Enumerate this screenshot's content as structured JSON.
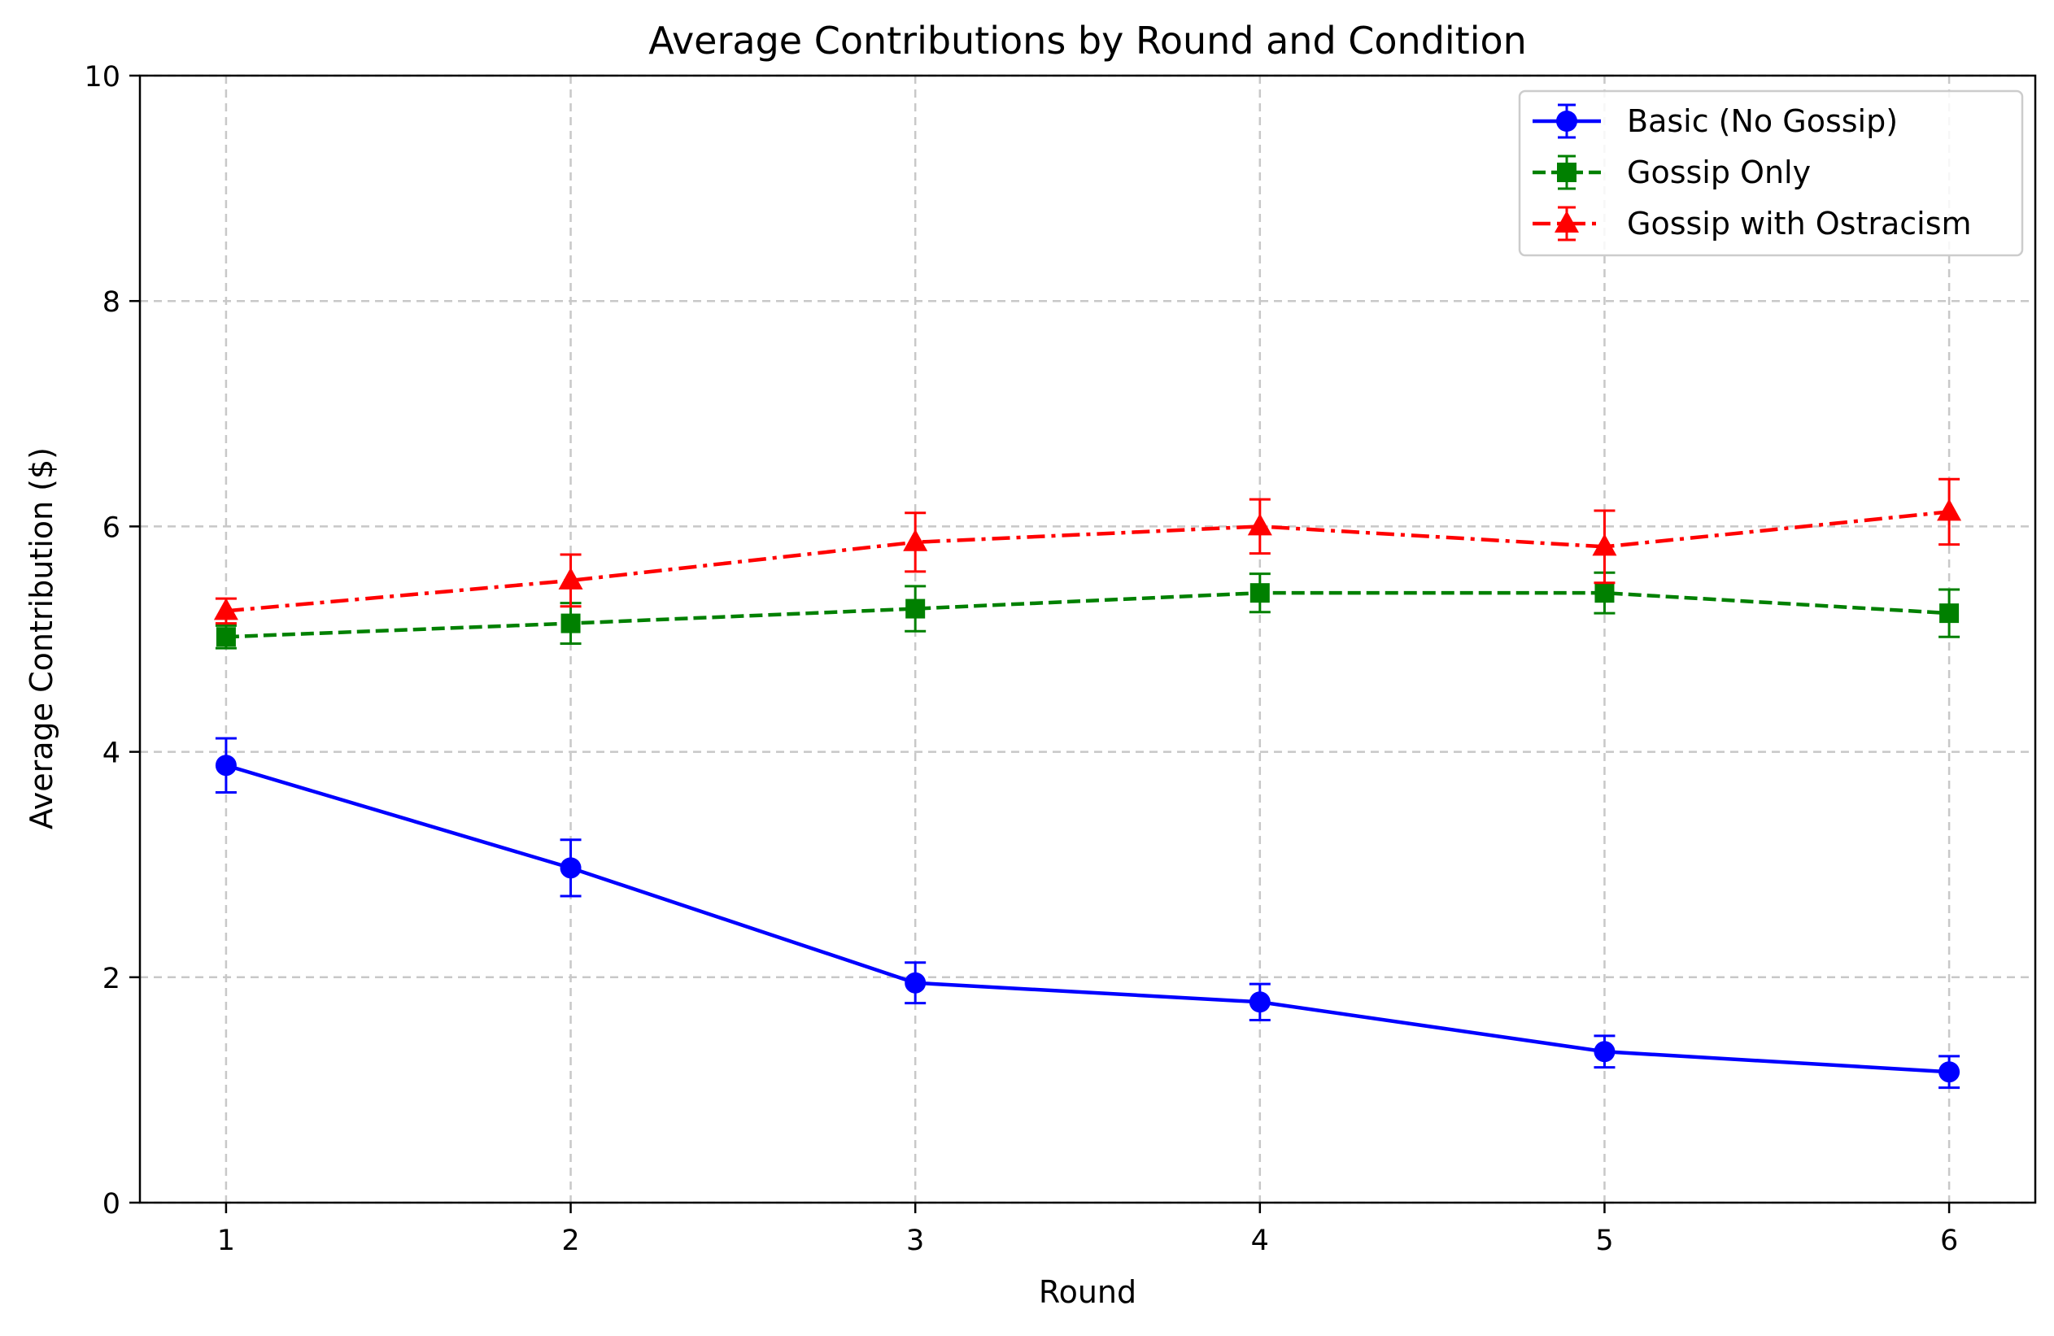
{
  "chart_data": {
    "type": "line",
    "title": "Average Contributions by Round and Condition",
    "xlabel": "Round",
    "ylabel": "Average Contribution ($)",
    "x": [
      1,
      2,
      3,
      4,
      5,
      6
    ],
    "xlim": [
      0.75,
      6.25
    ],
    "ylim": [
      0,
      10
    ],
    "xticks": [
      "1",
      "2",
      "3",
      "4",
      "5",
      "6"
    ],
    "yticks": [
      "0",
      "2",
      "4",
      "6",
      "8",
      "10"
    ],
    "grid": true,
    "legend_position": "top-right",
    "series": [
      {
        "name": "Basic (No Gossip)",
        "color": "#0000ff",
        "line_style": "solid",
        "marker": "circle",
        "values": [
          3.88,
          2.97,
          1.95,
          1.78,
          1.34,
          1.16
        ],
        "errors": [
          0.24,
          0.25,
          0.18,
          0.16,
          0.14,
          0.14
        ]
      },
      {
        "name": "Gossip Only",
        "color": "#008000",
        "line_style": "dashed",
        "marker": "square",
        "values": [
          5.02,
          5.14,
          5.27,
          5.41,
          5.41,
          5.23
        ],
        "errors": [
          0.1,
          0.18,
          0.2,
          0.17,
          0.18,
          0.21
        ]
      },
      {
        "name": "Gossip with Ostracism",
        "color": "#ff0000",
        "line_style": "dashdot",
        "marker": "triangle",
        "values": [
          5.25,
          5.52,
          5.86,
          6.0,
          5.82,
          6.13
        ],
        "errors": [
          0.11,
          0.23,
          0.26,
          0.24,
          0.32,
          0.29
        ]
      }
    ]
  }
}
